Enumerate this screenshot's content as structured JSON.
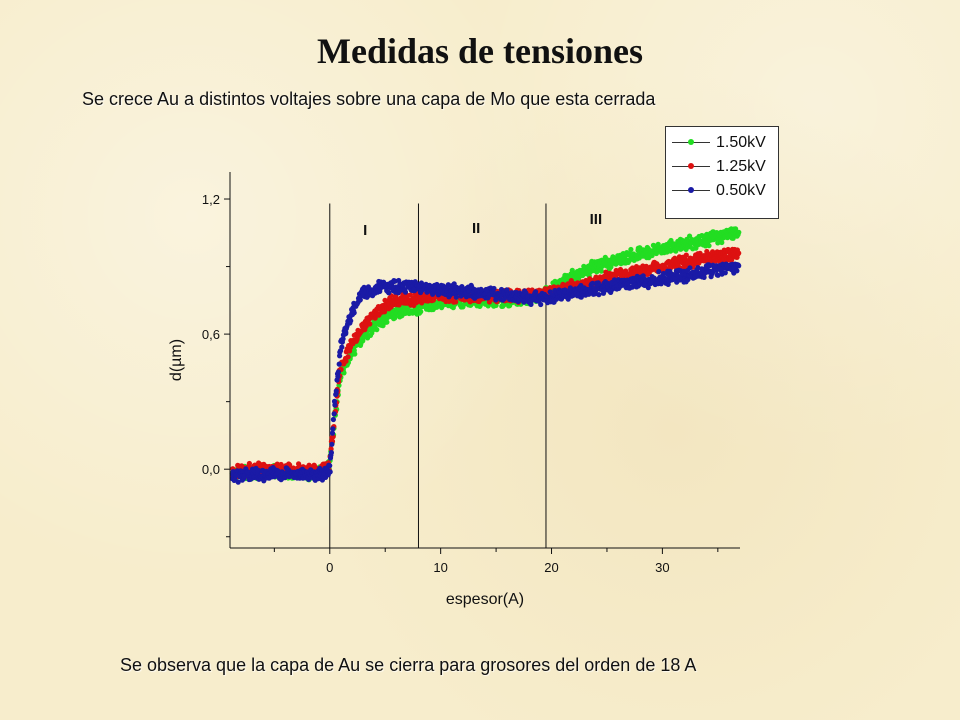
{
  "page": {
    "title": "Medidas de tensiones",
    "subtitle": "Se crece Au a distintos voltajes sobre una capa de Mo que esta cerrada",
    "footer": "Se observa que la capa de Au se cierra para grosores del orden de 18 A"
  },
  "chart_data": {
    "type": "scatter",
    "title": "",
    "xlabel": "espesor(A)",
    "ylabel": "d(µm)",
    "xlim": [
      -9,
      37
    ],
    "ylim": [
      -0.35,
      1.32
    ],
    "x_ticks": [
      0,
      10,
      20,
      30
    ],
    "x_tick_labels": [
      "0",
      "10",
      "20",
      "30"
    ],
    "y_ticks": [
      0.0,
      0.6,
      1.2
    ],
    "y_tick_labels": [
      "0,0",
      "0,6",
      "1,2"
    ],
    "grid": false,
    "legend_position": "top-right",
    "regions": [
      {
        "label": "I",
        "x_start": 0,
        "x_end": 8,
        "label_x": 3.2,
        "label_y": 1.04
      },
      {
        "label": "II",
        "x_start": 8,
        "x_end": 19.5,
        "label_x": 13.2,
        "label_y": 1.05
      },
      {
        "label": "III",
        "x_start": 19.5,
        "x_end": 37,
        "label_x": 24,
        "label_y": 1.09
      }
    ],
    "region_boundaries": [
      0,
      8,
      19.5
    ],
    "series": [
      {
        "name": "1.50kV",
        "color": "#22dd22",
        "x": [
          -9,
          -5,
          -2,
          -0.5,
          0,
          0.5,
          1,
          2,
          3,
          4,
          5,
          6,
          8,
          10,
          12,
          14,
          16,
          18,
          19.5,
          22,
          24,
          26,
          28,
          30,
          32,
          34,
          35.5,
          37
        ],
        "y": [
          -0.02,
          -0.01,
          -0.02,
          -0.01,
          0.02,
          0.26,
          0.42,
          0.52,
          0.59,
          0.64,
          0.67,
          0.7,
          0.72,
          0.74,
          0.75,
          0.75,
          0.75,
          0.76,
          0.78,
          0.86,
          0.9,
          0.93,
          0.96,
          0.98,
          1.0,
          1.02,
          1.04,
          1.06
        ]
      },
      {
        "name": "1.25kV",
        "color": "#dd1111",
        "x": [
          -9,
          -5,
          -2,
          -0.5,
          0,
          0.5,
          1,
          2,
          3,
          4,
          5,
          6,
          8,
          10,
          12,
          14,
          16,
          18,
          19.5,
          22,
          24,
          26,
          28,
          30,
          32,
          34,
          35.5,
          37
        ],
        "y": [
          -0.01,
          0.0,
          -0.01,
          0.0,
          0.02,
          0.28,
          0.46,
          0.56,
          0.63,
          0.69,
          0.73,
          0.75,
          0.76,
          0.77,
          0.77,
          0.77,
          0.77,
          0.77,
          0.78,
          0.81,
          0.83,
          0.86,
          0.88,
          0.9,
          0.92,
          0.94,
          0.95,
          0.96
        ]
      },
      {
        "name": "0.50kV",
        "color": "#1a1aa6",
        "x": [
          -9,
          -5,
          -2,
          -0.5,
          0,
          0.5,
          1,
          2,
          3,
          4,
          5,
          6,
          8,
          10,
          12,
          14,
          16,
          18,
          19.5,
          22,
          24,
          26,
          28,
          30,
          32,
          34,
          35.5,
          37
        ],
        "y": [
          -0.03,
          -0.02,
          -0.03,
          -0.02,
          0.0,
          0.32,
          0.55,
          0.7,
          0.78,
          0.8,
          0.81,
          0.81,
          0.81,
          0.8,
          0.79,
          0.78,
          0.77,
          0.76,
          0.76,
          0.78,
          0.8,
          0.82,
          0.83,
          0.85,
          0.86,
          0.88,
          0.89,
          0.9
        ]
      }
    ]
  }
}
